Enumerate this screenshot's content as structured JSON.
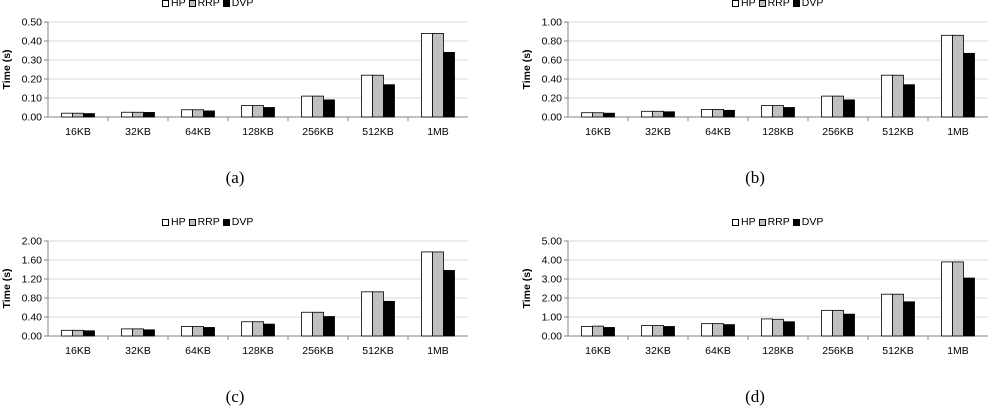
{
  "chart_data": [
    {
      "type": "bar",
      "caption": "(a)",
      "ylabel": "Time (s)",
      "categories": [
        "16KB",
        "32KB",
        "64KB",
        "128KB",
        "256KB",
        "512KB",
        "1MB"
      ],
      "ylim": [
        0,
        0.5
      ],
      "yticks": [
        "0.00",
        "0.10",
        "0.20",
        "0.30",
        "0.40",
        "0.50"
      ],
      "grid": true,
      "legend_position": "top-center",
      "series": [
        {
          "name": "HP",
          "color": "#ffffff",
          "values": [
            0.02,
            0.025,
            0.038,
            0.06,
            0.11,
            0.22,
            0.44
          ]
        },
        {
          "name": "RRP",
          "color": "#c0c0c0",
          "values": [
            0.02,
            0.025,
            0.038,
            0.06,
            0.11,
            0.22,
            0.44
          ]
        },
        {
          "name": "DVP",
          "color": "#000000",
          "values": [
            0.018,
            0.024,
            0.032,
            0.05,
            0.09,
            0.17,
            0.34
          ]
        }
      ]
    },
    {
      "type": "bar",
      "caption": "(b)",
      "ylabel": "Time (s)",
      "categories": [
        "16KB",
        "32KB",
        "64KB",
        "128KB",
        "256KB",
        "512KB",
        "1MB"
      ],
      "ylim": [
        0,
        1.0
      ],
      "yticks": [
        "0.00",
        "0.20",
        "0.40",
        "0.60",
        "0.80",
        "1.00"
      ],
      "grid": true,
      "legend_position": "top-center",
      "series": [
        {
          "name": "HP",
          "color": "#ffffff",
          "values": [
            0.045,
            0.06,
            0.08,
            0.12,
            0.22,
            0.44,
            0.86
          ]
        },
        {
          "name": "RRP",
          "color": "#c0c0c0",
          "values": [
            0.045,
            0.06,
            0.08,
            0.12,
            0.22,
            0.44,
            0.86
          ]
        },
        {
          "name": "DVP",
          "color": "#000000",
          "values": [
            0.04,
            0.055,
            0.07,
            0.1,
            0.18,
            0.34,
            0.67
          ]
        }
      ]
    },
    {
      "type": "bar",
      "caption": "(c)",
      "ylabel": "Time (s)",
      "categories": [
        "16KB",
        "32KB",
        "64KB",
        "128KB",
        "256KB",
        "512KB",
        "1MB"
      ],
      "ylim": [
        0,
        2.0
      ],
      "yticks": [
        "0.00",
        "0.40",
        "0.80",
        "1.20",
        "1.60",
        "2.00"
      ],
      "grid": true,
      "legend_position": "top-center",
      "series": [
        {
          "name": "HP",
          "color": "#ffffff",
          "values": [
            0.12,
            0.15,
            0.2,
            0.3,
            0.5,
            0.93,
            1.77
          ]
        },
        {
          "name": "RRP",
          "color": "#c0c0c0",
          "values": [
            0.12,
            0.15,
            0.2,
            0.3,
            0.5,
            0.93,
            1.77
          ]
        },
        {
          "name": "DVP",
          "color": "#000000",
          "values": [
            0.11,
            0.13,
            0.18,
            0.25,
            0.41,
            0.73,
            1.38
          ]
        }
      ]
    },
    {
      "type": "bar",
      "caption": "(d)",
      "ylabel": "Time (s)",
      "categories": [
        "16KB",
        "32KB",
        "64KB",
        "128KB",
        "256KB",
        "512KB",
        "1MB"
      ],
      "ylim": [
        0,
        5.0
      ],
      "yticks": [
        "0.00",
        "1.00",
        "2.00",
        "3.00",
        "4.00",
        "5.00"
      ],
      "grid": true,
      "legend_position": "top-center",
      "series": [
        {
          "name": "HP",
          "color": "#ffffff",
          "values": [
            0.5,
            0.55,
            0.65,
            0.9,
            1.35,
            2.2,
            3.9
          ]
        },
        {
          "name": "RRP",
          "color": "#c0c0c0",
          "values": [
            0.52,
            0.55,
            0.65,
            0.88,
            1.35,
            2.2,
            3.9
          ]
        },
        {
          "name": "DVP",
          "color": "#000000",
          "values": [
            0.45,
            0.5,
            0.6,
            0.75,
            1.15,
            1.8,
            3.05
          ]
        }
      ]
    }
  ]
}
